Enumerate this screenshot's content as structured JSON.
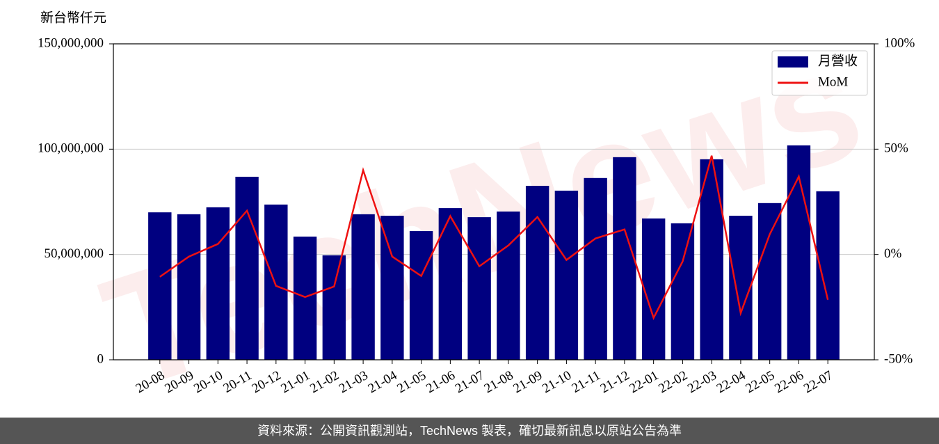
{
  "chart_data": {
    "type": "bar-line",
    "y_label": "新台幣仟元",
    "watermark": "TechNews",
    "categories": [
      "20-08",
      "20-09",
      "20-10",
      "20-11",
      "20-12",
      "21-01",
      "21-02",
      "21-03",
      "21-04",
      "21-05",
      "21-06",
      "21-07",
      "21-08",
      "21-09",
      "21-10",
      "21-11",
      "21-12",
      "22-01",
      "22-02",
      "22-03",
      "22-04",
      "22-05",
      "22-06",
      "22-07"
    ],
    "series": [
      {
        "name": "月營收",
        "type": "bar",
        "color": "#000080",
        "values": [
          70000000,
          69100000,
          72400000,
          86900000,
          73700000,
          58500000,
          49600000,
          69100000,
          68400000,
          61100000,
          72000000,
          67700000,
          70400000,
          82600000,
          80300000,
          86300000,
          96200000,
          67100000,
          64800000,
          95200000,
          68400000,
          74400000,
          101800000,
          80000000
        ]
      },
      {
        "name": "MoM",
        "type": "line",
        "axis": "y2",
        "color": "#ee1111",
        "values": [
          -10.6,
          -1,
          5,
          20.8,
          -14.9,
          -20.2,
          -15.2,
          40,
          -1,
          -10.2,
          18.2,
          -5.6,
          4.3,
          17.8,
          -2.6,
          7.6,
          11.9,
          -30.1,
          -3.3,
          46.9,
          -27.8,
          9.6,
          37,
          -21.5
        ]
      }
    ],
    "ylim": [
      0,
      150000000
    ],
    "yticks": [
      0,
      {
        "value": 50000000,
        "label": "50,000,000"
      },
      {
        "value": 100000000,
        "label": "100,000,000"
      },
      {
        "value": 150000000,
        "label": "150,000,000"
      }
    ],
    "y2lim": [
      -50,
      100
    ],
    "y2ticks": [
      {
        "value": -50,
        "label": "-50%"
      },
      {
        "value": 0,
        "label": "0%"
      },
      {
        "value": 50,
        "label": "50%"
      },
      {
        "value": 100,
        "label": "100%"
      }
    ],
    "grid": true,
    "legend": "upper right"
  },
  "footer": {
    "text": "資料來源：公開資訊觀測站，TechNews 製表，確切最新訊息以原站公告為準"
  }
}
